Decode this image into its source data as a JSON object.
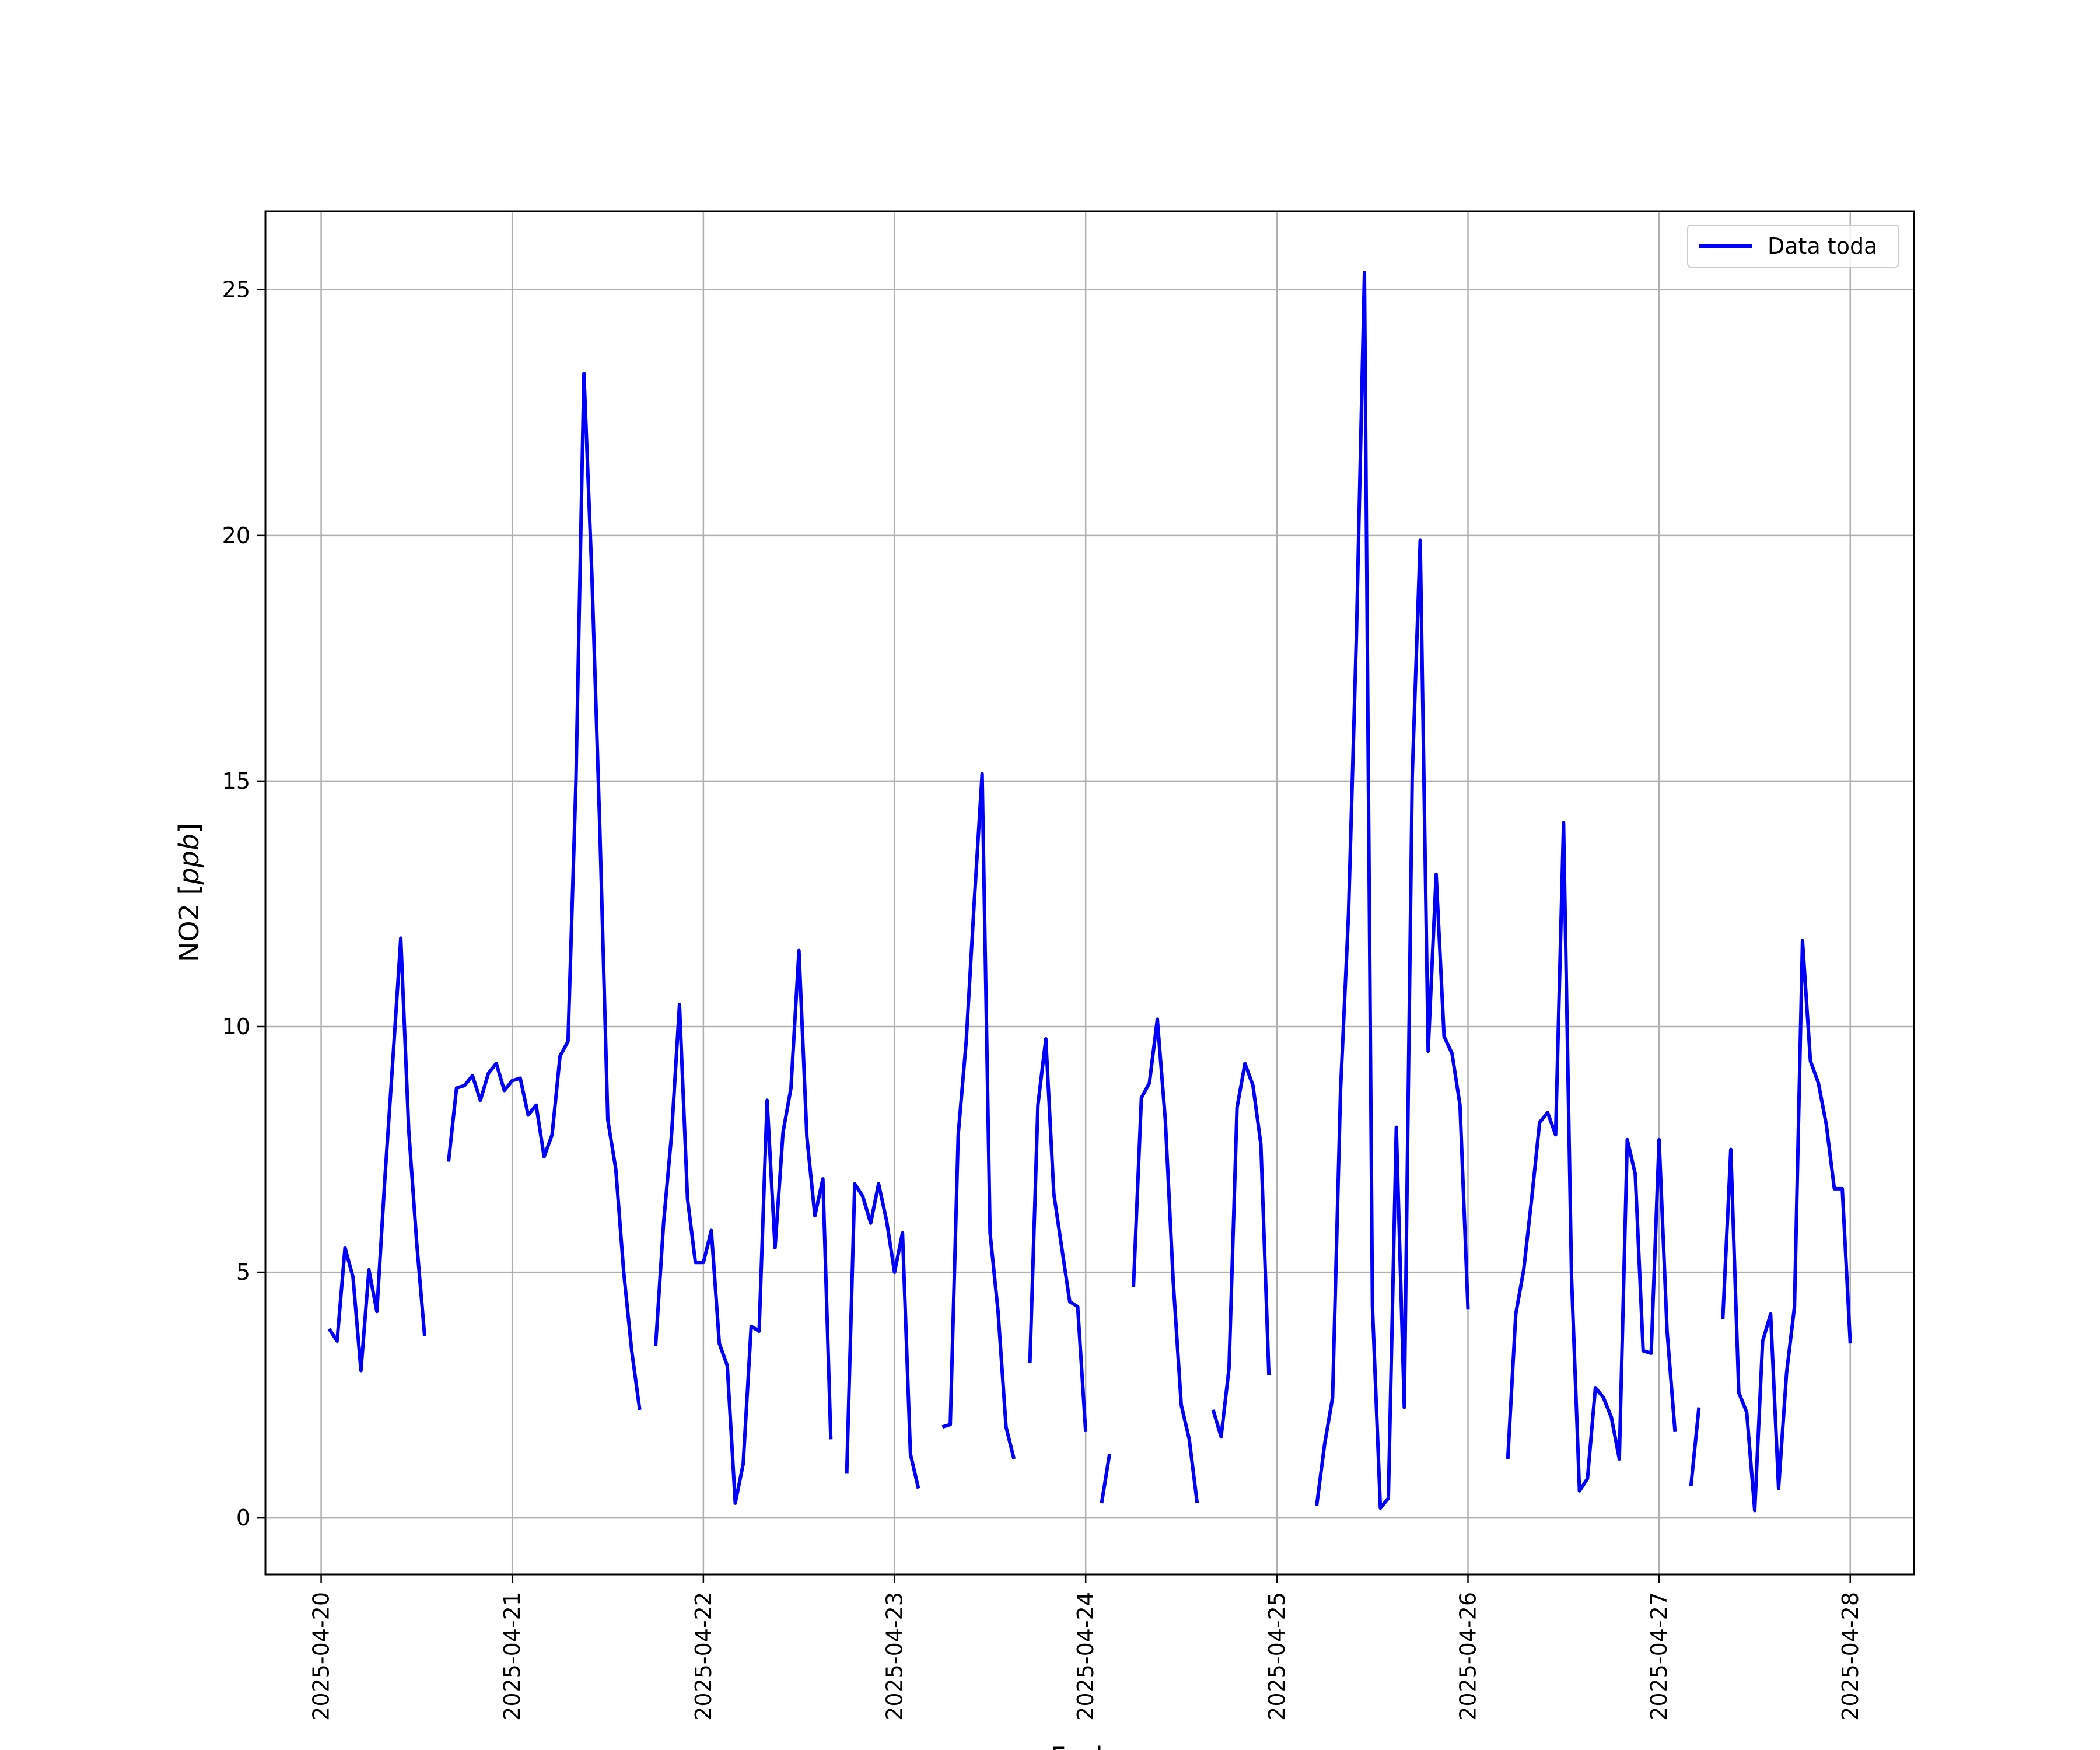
{
  "chart_data": {
    "type": "line",
    "xlabel": "Fecha",
    "ylabel": "NO2 [",
    "ylabel_unit": "ppb",
    "ylabel_close": "]",
    "legend_label": "Data toda",
    "legend_position": "top-right",
    "grid": true,
    "colors": {
      "line": "#0000ff",
      "grid": "#b0b0b0",
      "frame": "#000000"
    },
    "xlim": [
      "2025-04-19T17:00",
      "2025-04-28T08:00"
    ],
    "ylim": [
      -1.15,
      26.6
    ],
    "y_ticks": [
      0,
      5,
      10,
      15,
      20,
      25
    ],
    "x_ticks": [
      "2025-04-20",
      "2025-04-21",
      "2025-04-22",
      "2025-04-23",
      "2025-04-24",
      "2025-04-25",
      "2025-04-26",
      "2025-04-27",
      "2025-04-28"
    ],
    "series": [
      {
        "name": "Data toda",
        "segments": [
          [
            [
              "2025-04-20T01:00",
              3.85
            ],
            [
              "2025-04-20T02:00",
              3.6
            ],
            [
              "2025-04-20T03:00",
              5.5
            ],
            [
              "2025-04-20T04:00",
              4.9
            ],
            [
              "2025-04-20T05:00",
              3.0
            ],
            [
              "2025-04-20T06:00",
              5.05
            ],
            [
              "2025-04-20T07:00",
              4.2
            ],
            [
              "2025-04-20T08:00",
              6.9
            ],
            [
              "2025-04-20T09:00",
              9.3
            ],
            [
              "2025-04-20T10:00",
              11.8
            ],
            [
              "2025-04-20T11:00",
              7.9
            ],
            [
              "2025-04-20T12:00",
              5.6
            ],
            [
              "2025-04-20T13:00",
              3.7
            ]
          ],
          [
            [
              "2025-04-20T16:00",
              7.25
            ],
            [
              "2025-04-20T17:00",
              8.75
            ],
            [
              "2025-04-20T18:00",
              8.8
            ],
            [
              "2025-04-20T19:00",
              9.0
            ],
            [
              "2025-04-20T20:00",
              8.5
            ],
            [
              "2025-04-20T21:00",
              9.05
            ],
            [
              "2025-04-20T22:00",
              9.25
            ],
            [
              "2025-04-20T23:00",
              8.7
            ],
            [
              "2025-04-21T00:00",
              8.9
            ],
            [
              "2025-04-21T01:00",
              8.95
            ],
            [
              "2025-04-21T02:00",
              8.2
            ],
            [
              "2025-04-21T03:00",
              8.4
            ],
            [
              "2025-04-21T04:00",
              7.35
            ],
            [
              "2025-04-21T05:00",
              7.8
            ],
            [
              "2025-04-21T06:00",
              9.4
            ],
            [
              "2025-04-21T07:00",
              9.7
            ],
            [
              "2025-04-21T08:00",
              15.0
            ],
            [
              "2025-04-21T09:00",
              23.3
            ],
            [
              "2025-04-21T10:00",
              19.2
            ],
            [
              "2025-04-21T11:00",
              14.0
            ],
            [
              "2025-04-21T12:00",
              8.1
            ],
            [
              "2025-04-21T13:00",
              7.1
            ],
            [
              "2025-04-21T14:00",
              5.0
            ],
            [
              "2025-04-21T15:00",
              3.4
            ],
            [
              "2025-04-21T16:00",
              2.2
            ]
          ],
          [
            [
              "2025-04-21T18:00",
              3.5
            ],
            [
              "2025-04-21T19:00",
              6.0
            ],
            [
              "2025-04-21T20:00",
              7.8
            ],
            [
              "2025-04-21T21:00",
              10.45
            ],
            [
              "2025-04-21T22:00",
              6.5
            ],
            [
              "2025-04-21T23:00",
              5.2
            ],
            [
              "2025-04-22T00:00",
              5.2
            ],
            [
              "2025-04-22T01:00",
              5.85
            ],
            [
              "2025-04-22T02:00",
              3.55
            ],
            [
              "2025-04-22T03:00",
              3.1
            ],
            [
              "2025-04-22T04:00",
              0.3
            ],
            [
              "2025-04-22T05:00",
              1.1
            ],
            [
              "2025-04-22T06:00",
              3.9
            ],
            [
              "2025-04-22T07:00",
              3.8
            ],
            [
              "2025-04-22T08:00",
              8.5
            ],
            [
              "2025-04-22T09:00",
              5.5
            ],
            [
              "2025-04-22T10:00",
              7.85
            ],
            [
              "2025-04-22T11:00",
              8.75
            ],
            [
              "2025-04-22T12:00",
              11.55
            ],
            [
              "2025-04-22T13:00",
              7.75
            ],
            [
              "2025-04-22T14:00",
              6.15
            ],
            [
              "2025-04-22T15:00",
              6.9
            ],
            [
              "2025-04-22T16:00",
              1.6
            ]
          ],
          [
            [
              "2025-04-22T18:00",
              0.9
            ],
            [
              "2025-04-22T19:00",
              6.8
            ],
            [
              "2025-04-22T20:00",
              6.55
            ],
            [
              "2025-04-22T21:00",
              6.0
            ],
            [
              "2025-04-22T22:00",
              6.8
            ],
            [
              "2025-04-22T23:00",
              6.05
            ],
            [
              "2025-04-23T00:00",
              5.0
            ],
            [
              "2025-04-23T01:00",
              5.8
            ],
            [
              "2025-04-23T02:00",
              1.3
            ],
            [
              "2025-04-23T03:00",
              0.6
            ]
          ],
          [
            [
              "2025-04-23T06:00",
              1.85
            ],
            [
              "2025-04-23T07:00",
              1.9
            ],
            [
              "2025-04-23T08:00",
              7.8
            ],
            [
              "2025-04-23T09:00",
              9.7
            ],
            [
              "2025-04-23T10:00",
              12.5
            ],
            [
              "2025-04-23T11:00",
              15.15
            ],
            [
              "2025-04-23T12:00",
              5.8
            ],
            [
              "2025-04-23T13:00",
              4.2
            ],
            [
              "2025-04-23T14:00",
              1.85
            ],
            [
              "2025-04-23T15:00",
              1.2
            ]
          ],
          [
            [
              "2025-04-23T17:00",
              3.15
            ],
            [
              "2025-04-23T18:00",
              8.4
            ],
            [
              "2025-04-23T19:00",
              9.75
            ],
            [
              "2025-04-23T20:00",
              6.6
            ],
            [
              "2025-04-23T21:00",
              5.5
            ],
            [
              "2025-04-23T22:00",
              4.4
            ],
            [
              "2025-04-23T23:00",
              4.3
            ],
            [
              "2025-04-24T00:00",
              1.75
            ]
          ],
          [
            [
              "2025-04-24T02:00",
              0.3
            ],
            [
              "2025-04-24T03:00",
              1.3
            ]
          ],
          [
            [
              "2025-04-24T06:00",
              4.7
            ],
            [
              "2025-04-24T07:00",
              8.55
            ],
            [
              "2025-04-24T08:00",
              8.85
            ],
            [
              "2025-04-24T09:00",
              10.15
            ],
            [
              "2025-04-24T10:00",
              8.1
            ],
            [
              "2025-04-24T11:00",
              4.8
            ],
            [
              "2025-04-24T12:00",
              2.3
            ],
            [
              "2025-04-24T13:00",
              1.6
            ],
            [
              "2025-04-24T14:00",
              0.3
            ]
          ],
          [
            [
              "2025-04-24T16:00",
              2.2
            ],
            [
              "2025-04-24T17:00",
              1.65
            ],
            [
              "2025-04-24T18:00",
              3.05
            ],
            [
              "2025-04-24T19:00",
              8.35
            ],
            [
              "2025-04-24T20:00",
              9.25
            ],
            [
              "2025-04-24T21:00",
              8.8
            ],
            [
              "2025-04-24T22:00",
              7.6
            ],
            [
              "2025-04-24T23:00",
              2.9
            ]
          ],
          [
            [
              "2025-04-25T05:00",
              0.25
            ],
            [
              "2025-04-25T06:00",
              1.5
            ],
            [
              "2025-04-25T07:00",
              2.45
            ],
            [
              "2025-04-25T08:00",
              8.7
            ],
            [
              "2025-04-25T09:00",
              12.3
            ],
            [
              "2025-04-25T10:00",
              18.0
            ],
            [
              "2025-04-25T11:00",
              25.35
            ],
            [
              "2025-04-25T12:00",
              4.3
            ],
            [
              "2025-04-25T13:00",
              0.2
            ],
            [
              "2025-04-25T14:00",
              0.4
            ],
            [
              "2025-04-25T15:00",
              7.95
            ],
            [
              "2025-04-25T16:00",
              2.25
            ],
            [
              "2025-04-25T17:00",
              15.1
            ],
            [
              "2025-04-25T18:00",
              19.9
            ],
            [
              "2025-04-25T19:00",
              9.5
            ],
            [
              "2025-04-25T20:00",
              13.1
            ],
            [
              "2025-04-25T21:00",
              9.8
            ],
            [
              "2025-04-25T22:00",
              9.45
            ],
            [
              "2025-04-25T23:00",
              8.4
            ],
            [
              "2025-04-26T00:00",
              4.25
            ]
          ],
          [
            [
              "2025-04-26T05:00",
              1.2
            ],
            [
              "2025-04-26T06:00",
              4.15
            ],
            [
              "2025-04-26T07:00",
              5.05
            ],
            [
              "2025-04-26T08:00",
              6.5
            ],
            [
              "2025-04-26T09:00",
              8.05
            ],
            [
              "2025-04-26T10:00",
              8.25
            ],
            [
              "2025-04-26T11:00",
              7.8
            ],
            [
              "2025-04-26T12:00",
              14.15
            ],
            [
              "2025-04-26T13:00",
              4.9
            ],
            [
              "2025-04-26T14:00",
              0.55
            ],
            [
              "2025-04-26T15:00",
              0.8
            ],
            [
              "2025-04-26T16:00",
              2.65
            ],
            [
              "2025-04-26T17:00",
              2.45
            ],
            [
              "2025-04-26T18:00",
              2.05
            ],
            [
              "2025-04-26T19:00",
              1.2
            ],
            [
              "2025-04-26T20:00",
              7.7
            ],
            [
              "2025-04-26T21:00",
              7.0
            ],
            [
              "2025-04-26T22:00",
              3.4
            ],
            [
              "2025-04-26T23:00",
              3.35
            ],
            [
              "2025-04-27T00:00",
              7.7
            ],
            [
              "2025-04-27T01:00",
              3.8
            ],
            [
              "2025-04-27T02:00",
              1.75
            ]
          ],
          [
            [
              "2025-04-27T04:00",
              0.65
            ],
            [
              "2025-04-27T05:00",
              2.25
            ]
          ],
          [
            [
              "2025-04-27T08:00",
              4.05
            ],
            [
              "2025-04-27T09:00",
              7.5
            ],
            [
              "2025-04-27T10:00",
              2.55
            ],
            [
              "2025-04-27T11:00",
              2.15
            ],
            [
              "2025-04-27T12:00",
              0.15
            ],
            [
              "2025-04-27T13:00",
              3.6
            ],
            [
              "2025-04-27T14:00",
              4.15
            ],
            [
              "2025-04-27T15:00",
              0.6
            ],
            [
              "2025-04-27T16:00",
              2.95
            ],
            [
              "2025-04-27T17:00",
              4.3
            ],
            [
              "2025-04-27T18:00",
              11.75
            ],
            [
              "2025-04-27T19:00",
              9.3
            ],
            [
              "2025-04-27T20:00",
              8.85
            ],
            [
              "2025-04-27T21:00",
              8.0
            ],
            [
              "2025-04-27T22:00",
              6.7
            ],
            [
              "2025-04-27T23:00",
              6.7
            ],
            [
              "2025-04-28T00:00",
              3.55
            ]
          ]
        ]
      }
    ]
  }
}
